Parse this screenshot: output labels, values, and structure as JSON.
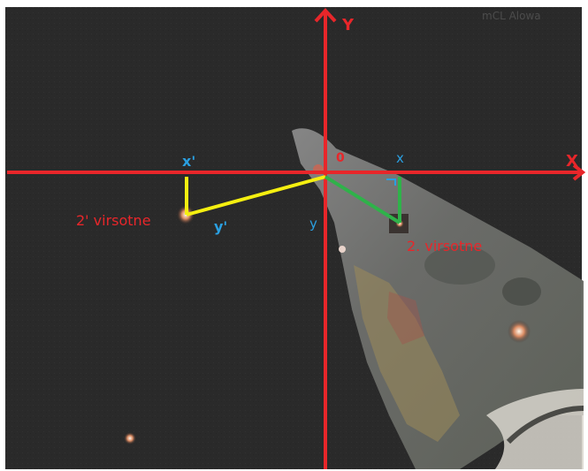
{
  "watermark": "mCL Alowa",
  "axes": {
    "x_label": "X",
    "y_label": "Y",
    "origin_label": "0"
  },
  "labels": {
    "x": "x",
    "y": "y",
    "x_prime": "x'",
    "y_prime": "y'",
    "point_2_prime": "2' virsotne",
    "point_2": "2. virsotne"
  },
  "colors": {
    "background": "#2b2b2b",
    "axis": "#e8262a",
    "label_red": "#e8262a",
    "label_blue": "#2a9fe0",
    "yellow_line": "#f5ef10",
    "green_line": "#2fb24a"
  }
}
